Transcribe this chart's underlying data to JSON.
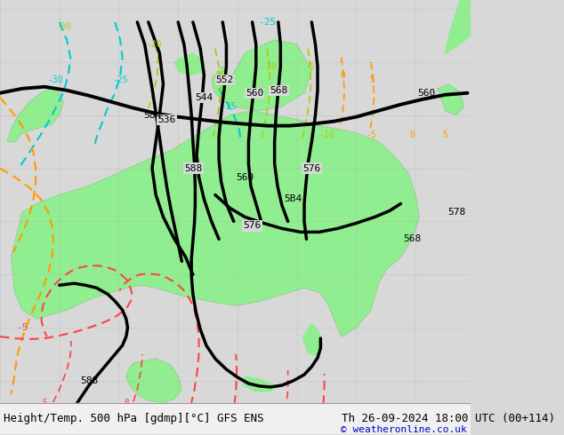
{
  "title_left": "Height/Temp. 500 hPa [gdmp][°C] GFS ENS",
  "title_right": "Th 26-09-2024 18:00 UTC (00+114)",
  "copyright": "© weatheronline.co.uk",
  "bg_color": "#d8d8d8",
  "land_color": "#c8c8c8",
  "ocean_color": "#d8d8d8",
  "green_color": "#90ee90",
  "title_color": "#000000",
  "copyright_color": "#0000cc",
  "bottom_bar_color": "#f0f0f0",
  "font_size_title": 9,
  "font_size_copyright": 8
}
